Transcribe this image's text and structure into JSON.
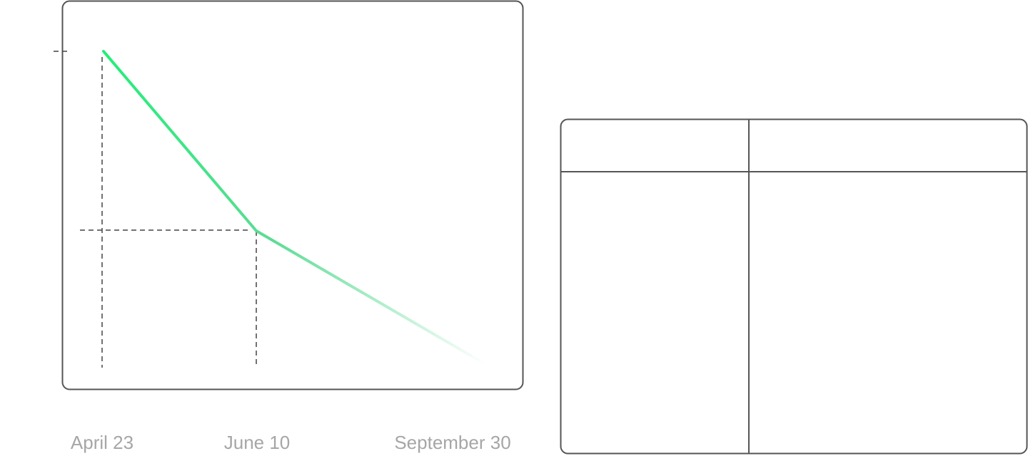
{
  "chart_data": {
    "type": "line",
    "x": [
      "April 23",
      "June 10",
      "September 30"
    ],
    "series": [
      {
        "values": [
          1.0,
          0.5,
          0.1
        ]
      }
    ],
    "title": "",
    "xlabel": "",
    "ylabel": "",
    "ylim": [
      0,
      1.1
    ],
    "grid": false,
    "legend": "none",
    "guides": [
      "April 23",
      "June 10"
    ]
  },
  "colors": {
    "line": "#22ee77",
    "line_mid": "#5ddc95",
    "frame": "#555555",
    "guide": "#444444",
    "tick_text": "#a6a6a6"
  },
  "side_table": {
    "columns": 2,
    "header_rows": 1,
    "cells": []
  }
}
